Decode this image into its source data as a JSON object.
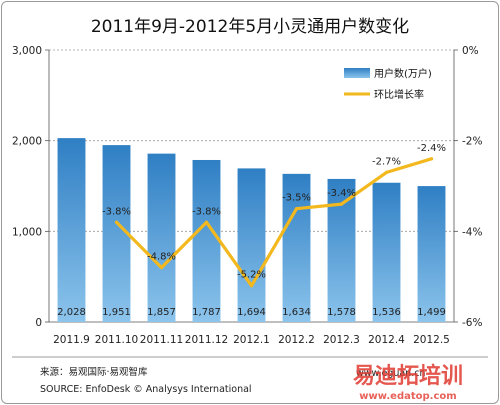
{
  "chart_data": {
    "type": "bar",
    "title": "2011年9月-2012年5月小灵通用户数变化",
    "categories": [
      "2011.9",
      "2011.10",
      "2011.11",
      "2011.12",
      "2012.1",
      "2012.2",
      "2012.3",
      "2012.4",
      "2012.5"
    ],
    "series": [
      {
        "name": "用户数(万户)",
        "type": "bar",
        "axis": "left",
        "values": [
          2028,
          1951,
          1857,
          1787,
          1694,
          1634,
          1578,
          1536,
          1499
        ],
        "labels": [
          "2,028",
          "1,951",
          "1,857",
          "1,787",
          "1,694",
          "1,634",
          "1,578",
          "1,536",
          "1,499"
        ],
        "color": "#2f7fc4"
      },
      {
        "name": "环比增长率",
        "type": "line",
        "axis": "right",
        "values": [
          null,
          -3.8,
          -4.8,
          -3.8,
          -5.2,
          -3.5,
          -3.4,
          -2.7,
          -2.4
        ],
        "labels": [
          "",
          "-3.8%",
          "-4.8%",
          "-3.8%",
          "-5.2%",
          "-3.5%",
          "-3.4%",
          "-2.7%",
          "-2.4%"
        ],
        "color": "#f2b81d"
      }
    ],
    "ylim": [
      0,
      3000
    ],
    "yticks": [
      0,
      1000,
      2000,
      3000
    ],
    "ytick_labels": [
      "0",
      "1,000",
      "2,000",
      "3,000"
    ],
    "y2lim": [
      -6,
      0
    ],
    "y2ticks": [
      0,
      -2,
      -4,
      -6
    ],
    "y2tick_labels": [
      "0%",
      "-2%",
      "-4%",
      "-6%"
    ],
    "grid": true,
    "legend": "top-right"
  },
  "source": {
    "cn": "来源：易观国际·易观智库",
    "en": "SOURCE: EnfoDesk © Analysys International"
  },
  "watermarks": {
    "site_url": "www.eguan.cn",
    "brand": "易迪拓培训",
    "brand_url": "www.edatop.com"
  },
  "colors": {
    "bar": "#2f7fc4",
    "bar_light": "#8cc4ec",
    "line": "#f2b81d",
    "grid": "#9a9a9a",
    "watermark": "#e13a2f"
  }
}
